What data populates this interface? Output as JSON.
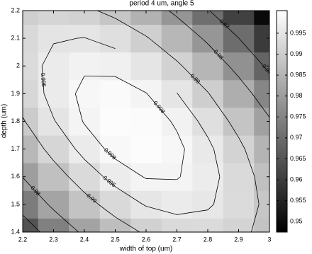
{
  "chart_data": {
    "type": "contour",
    "title": "period 4 um, angle 5",
    "xlabel": "width of top (um)",
    "ylabel": "depth (um)",
    "x": [
      2.2,
      2.3,
      2.4,
      2.5,
      2.6,
      2.7,
      2.8,
      2.9,
      3
    ],
    "y": [
      1.4,
      1.5,
      1.6,
      1.7,
      1.8,
      1.9,
      2.0,
      2.1,
      2.2
    ],
    "z": [
      [
        0.9648,
        0.974,
        0.9814,
        0.987,
        0.9908,
        0.9928,
        0.993,
        0.9914,
        0.988
      ],
      [
        0.9733,
        0.9815,
        0.9879,
        0.9925,
        0.9953,
        0.9963,
        0.9955,
        0.9929,
        0.9885
      ],
      [
        0.9802,
        0.9874,
        0.9928,
        0.9964,
        0.9982,
        0.9982,
        0.9964,
        0.9928,
        0.9874
      ],
      [
        0.9857,
        0.9919,
        0.9963,
        0.9989,
        0.9997,
        0.9987,
        0.9959,
        0.9913,
        0.9849
      ],
      [
        0.9896,
        0.9948,
        0.9982,
        0.9998,
        0.9996,
        0.9976,
        0.9938,
        0.9882,
        0.9808
      ],
      [
        0.9921,
        0.9963,
        0.9987,
        0.9993,
        0.9981,
        0.9951,
        0.9903,
        0.9837,
        0.9753
      ],
      [
        0.993,
        0.9962,
        0.9976,
        0.9972,
        0.995,
        0.991,
        0.9852,
        0.9776,
        0.9682
      ],
      [
        0.9925,
        0.9947,
        0.9951,
        0.9937,
        0.9905,
        0.9855,
        0.9787,
        0.9701,
        0.9597
      ],
      [
        0.9904,
        0.9916,
        0.991,
        0.9886,
        0.9844,
        0.9784,
        0.9706,
        0.961,
        0.9496
      ]
    ],
    "xlim": [
      2.2,
      3
    ],
    "ylim": [
      1.4,
      2.2
    ],
    "xticks": [
      2.2,
      2.3,
      2.4,
      2.5,
      2.6,
      2.7,
      2.8,
      2.9,
      3
    ],
    "yticks": [
      1.4,
      1.5,
      1.6,
      1.7,
      1.8,
      1.9,
      2,
      2.1,
      2.2
    ],
    "colormap": "gray",
    "clim": [
      0.9475,
      1.0004
    ],
    "colorbar_ticks": [
      0.95,
      0.955,
      0.96,
      0.965,
      0.97,
      0.975,
      0.98,
      0.985,
      0.99,
      0.995
    ],
    "contour_levels": [
      0.97,
      0.98,
      0.99,
      0.995,
      0.998
    ],
    "contour_color": "#000000"
  }
}
